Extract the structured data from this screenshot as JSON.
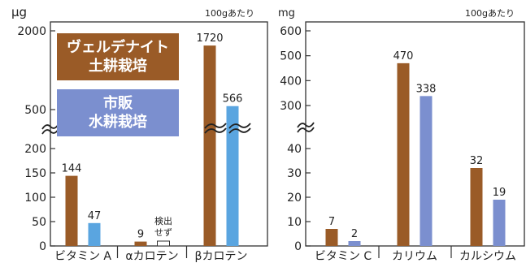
{
  "colors": {
    "soil": "#9a5b27",
    "hydro_left": "#5aa5e0",
    "hydro_right": "#7b8fcf",
    "axis": "#333333"
  },
  "legend": {
    "soil_line1": "ヴェルデナイト",
    "soil_line2": "土耕栽培",
    "hydro_line1": "市販",
    "hydro_line2": "水耕栽培"
  },
  "chart_data": [
    {
      "type": "bar",
      "unit": "μg",
      "note": "100gあたり",
      "categories": [
        "ビタミン A",
        "αカロテン",
        "βカロテン"
      ],
      "series": [
        {
          "name": "ヴェルデナイト 土耕栽培",
          "values": [
            144,
            9,
            1720
          ]
        },
        {
          "name": "市販 水耕栽培",
          "values": [
            47,
            0,
            566
          ]
        }
      ],
      "missing_label": "検出せず",
      "axis_break": [
        200,
        500
      ],
      "yticks": [
        0,
        50,
        100,
        150,
        200,
        500,
        2000
      ],
      "ylim": [
        0,
        2000
      ]
    },
    {
      "type": "bar",
      "unit": "mg",
      "note": "100gあたり",
      "categories": [
        "ビタミン C",
        "カリウム",
        "カルシウム"
      ],
      "series": [
        {
          "name": "ヴェルデナイト 土耕栽培",
          "values": [
            7,
            470,
            32
          ]
        },
        {
          "name": "市販 水耕栽培",
          "values": [
            2,
            338,
            19
          ]
        }
      ],
      "axis_break": [
        40,
        300
      ],
      "yticks": [
        0,
        10,
        20,
        30,
        40,
        300,
        400,
        500,
        600
      ],
      "ylim": [
        0,
        600
      ]
    }
  ]
}
